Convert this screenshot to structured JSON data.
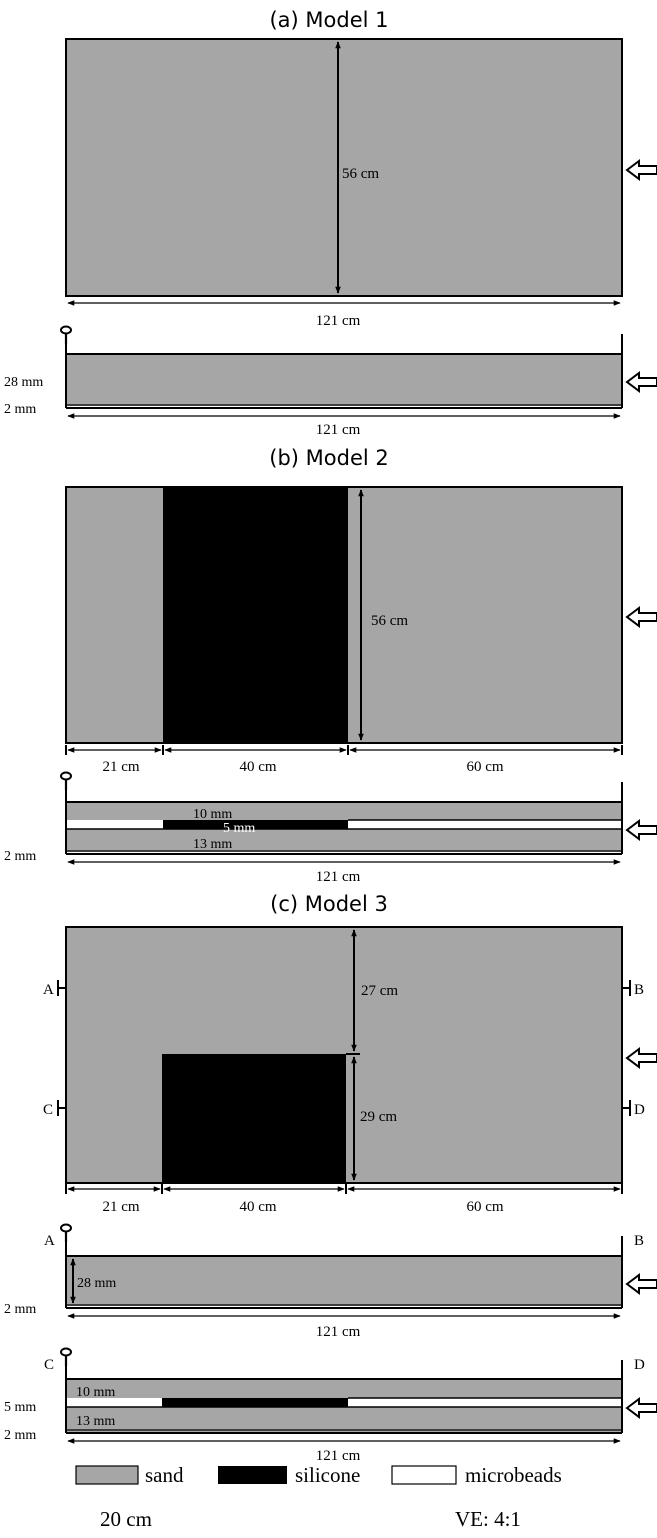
{
  "colors": {
    "sand": "#a6a6a6",
    "silicone": "#000000",
    "microbeads": "#ffffff",
    "line": "#000000"
  },
  "model1": {
    "title": "(a) Model 1",
    "map": {
      "height_label": "56 cm",
      "width_label": "121 cm"
    },
    "section": {
      "thick_label": "28 mm",
      "base_label": "2 mm",
      "width_label": "121 cm"
    }
  },
  "model2": {
    "title": "(b) Model 2",
    "map": {
      "height_label": "56 cm",
      "seg1_label": "21 cm",
      "seg2_label": "40 cm",
      "seg3_label": "60 cm"
    },
    "section": {
      "top_label": "10 mm",
      "mid_label": "5 mm",
      "bottom_label": "13 mm",
      "base_label": "2 mm",
      "width_label": "121 cm"
    }
  },
  "model3": {
    "title": "(c) Model 3",
    "map": {
      "upper_label": "27 cm",
      "lower_label": "29 cm",
      "seg1_label": "21 cm",
      "seg2_label": "40 cm",
      "seg3_label": "60 cm",
      "mark_a": "A",
      "mark_b": "B",
      "mark_c": "C",
      "mark_d": "D"
    },
    "section_ab": {
      "left_mark": "A",
      "right_mark": "B",
      "thick_label": "28 mm",
      "base_label": "2 mm",
      "width_label": "121 cm"
    },
    "section_cd": {
      "left_mark": "C",
      "right_mark": "D",
      "top_label": "10 mm",
      "mid_label": "5 mm",
      "bottom_label": "13 mm",
      "base_label": "2 mm",
      "width_label": "121 cm"
    }
  },
  "legend": {
    "sand": "sand",
    "silicone": "silicone",
    "microbeads": "microbeads",
    "scale": "20 cm",
    "ve": "VE: 4:1"
  }
}
